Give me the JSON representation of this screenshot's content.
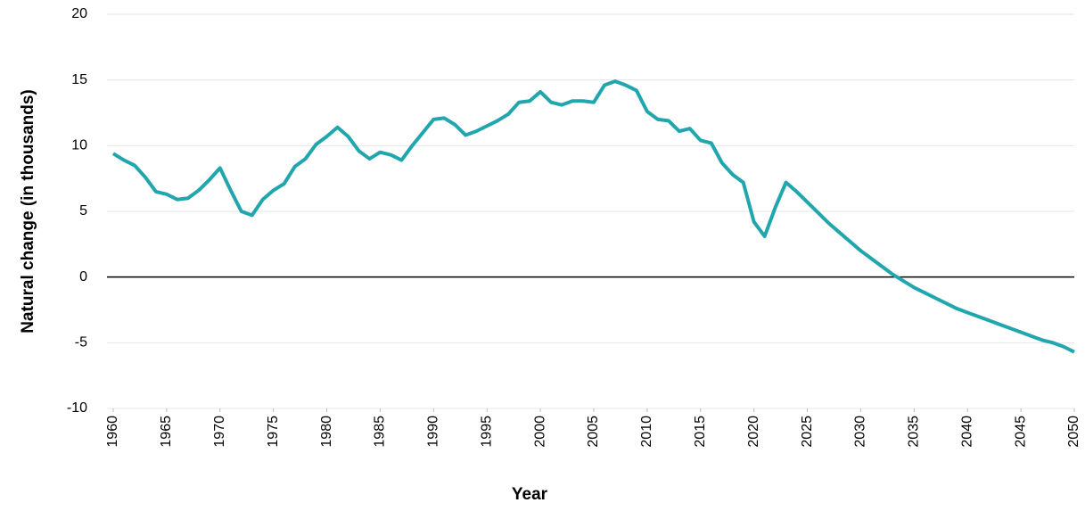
{
  "chart_data": {
    "type": "line",
    "x_label": "Year",
    "y_label": "Natural change (in thousands)",
    "x": [
      1960,
      1961,
      1962,
      1963,
      1964,
      1965,
      1966,
      1967,
      1968,
      1969,
      1970,
      1971,
      1972,
      1973,
      1974,
      1975,
      1976,
      1977,
      1978,
      1979,
      1980,
      1981,
      1982,
      1983,
      1984,
      1985,
      1986,
      1987,
      1988,
      1989,
      1990,
      1991,
      1992,
      1993,
      1994,
      1995,
      1996,
      1997,
      1998,
      1999,
      2000,
      2001,
      2002,
      2003,
      2004,
      2005,
      2006,
      2007,
      2008,
      2009,
      2010,
      2011,
      2012,
      2013,
      2014,
      2015,
      2016,
      2017,
      2018,
      2019,
      2020,
      2021,
      2022,
      2023,
      2024,
      2025,
      2026,
      2027,
      2028,
      2029,
      2030,
      2031,
      2032,
      2033,
      2034,
      2035,
      2036,
      2037,
      2038,
      2039,
      2040,
      2041,
      2042,
      2043,
      2044,
      2045,
      2046,
      2047,
      2048,
      2049,
      2050
    ],
    "series": [
      {
        "color": "#21a6ad",
        "values": [
          9.4,
          8.9,
          8.5,
          7.6,
          6.5,
          6.3,
          5.9,
          6.0,
          6.6,
          7.4,
          8.3,
          6.6,
          5.0,
          4.7,
          5.9,
          6.6,
          7.1,
          8.4,
          9.0,
          10.1,
          10.7,
          11.4,
          10.7,
          9.6,
          9.0,
          9.5,
          9.3,
          8.9,
          10.0,
          11.0,
          12.0,
          12.1,
          11.6,
          10.8,
          11.1,
          11.5,
          11.9,
          12.4,
          13.3,
          13.4,
          14.1,
          13.3,
          13.1,
          13.4,
          13.4,
          13.3,
          14.6,
          14.9,
          14.6,
          14.2,
          12.6,
          12.0,
          11.9,
          11.1,
          11.3,
          10.4,
          10.2,
          8.7,
          7.8,
          7.2,
          4.2,
          3.1,
          5.3,
          7.2,
          6.5,
          5.7,
          4.9,
          4.1,
          3.4,
          2.7,
          2.0,
          1.4,
          0.8,
          0.2,
          -0.3,
          -0.8,
          -1.2,
          -1.6,
          -2.0,
          -2.4,
          -2.7,
          -3.0,
          -3.3,
          -3.6,
          -3.9,
          -4.2,
          -4.5,
          -4.8,
          -5.0,
          -5.3,
          -5.7
        ]
      }
    ],
    "xlim": [
      1960,
      2050
    ],
    "xticks": [
      1960,
      1965,
      1970,
      1975,
      1980,
      1985,
      1990,
      1995,
      2000,
      2005,
      2010,
      2015,
      2020,
      2025,
      2030,
      2035,
      2040,
      2045,
      2050
    ],
    "ylim": [
      -10,
      20
    ],
    "yticks": [
      -10,
      -5,
      0,
      5,
      10,
      15,
      20
    ],
    "grid": true
  }
}
